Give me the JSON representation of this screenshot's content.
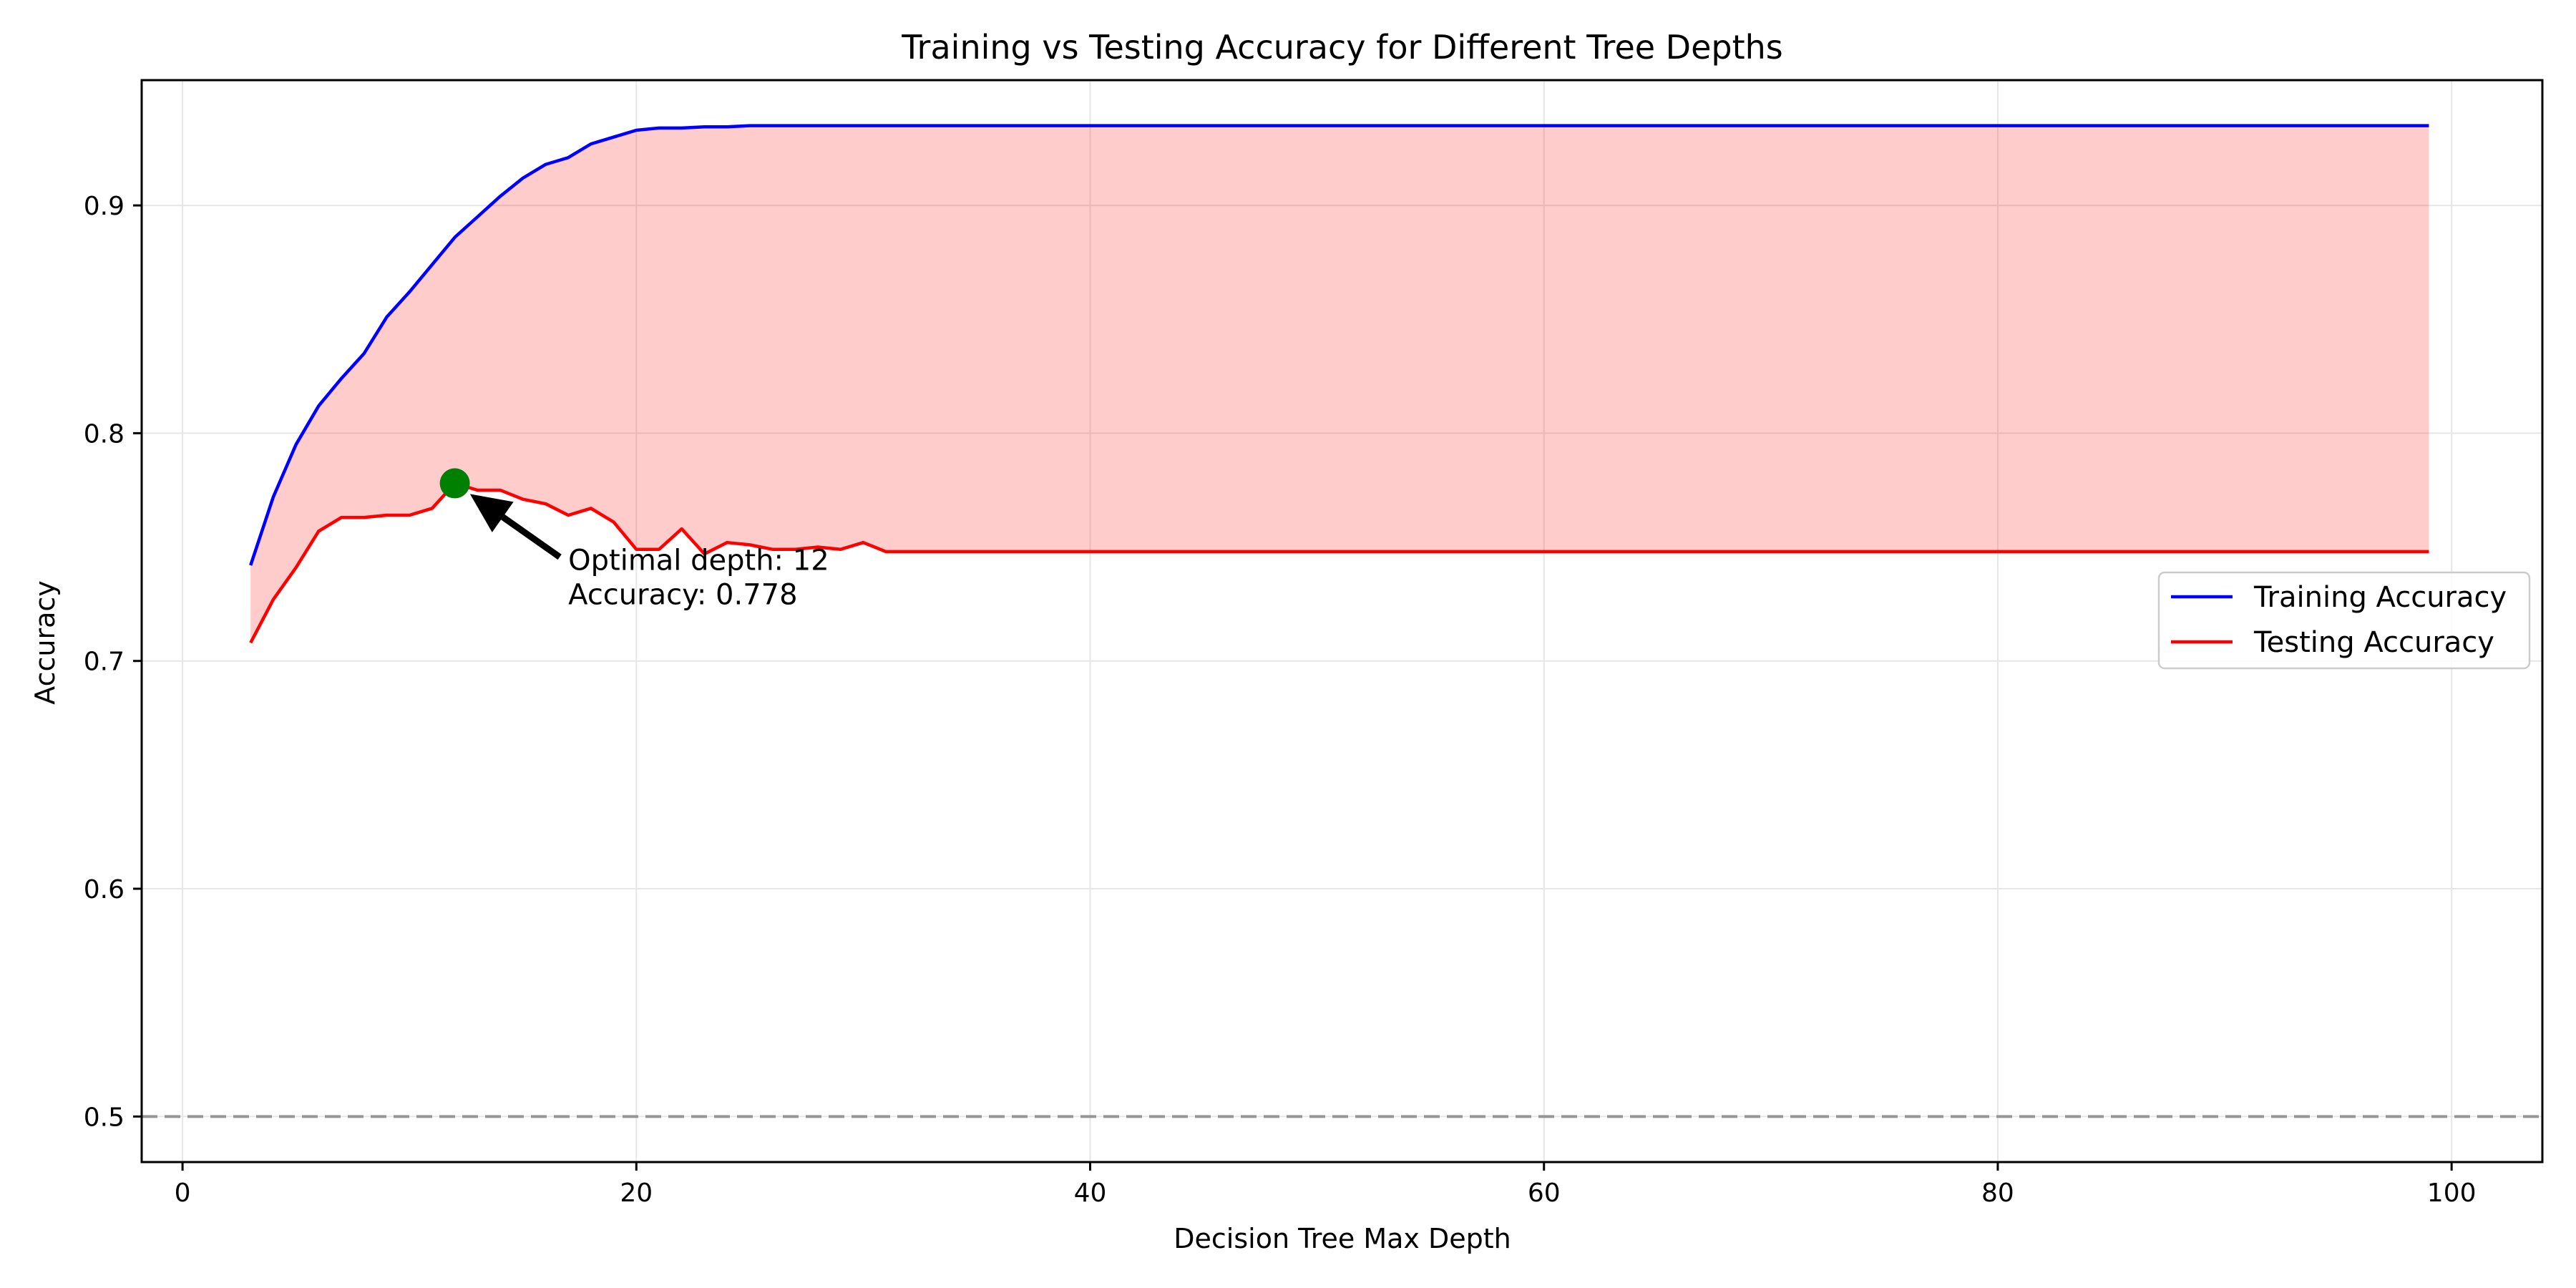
{
  "chart_data": {
    "type": "line",
    "title": "Training vs Testing Accuracy for Different Tree Depths",
    "xlabel": "Decision Tree Max Depth",
    "ylabel": "Accuracy",
    "xlim": [
      -1.8,
      104.0
    ],
    "ylim": [
      0.48,
      0.955
    ],
    "xticks": [
      0,
      20,
      40,
      60,
      80,
      100
    ],
    "yticks": [
      0.5,
      0.6,
      0.7,
      0.8,
      0.9
    ],
    "xtick_labels": [
      "0",
      "20",
      "40",
      "60",
      "80",
      "100"
    ],
    "ytick_labels": [
      "0.5",
      "0.6",
      "0.7",
      "0.8",
      "0.9"
    ],
    "grid": true,
    "legend_position": "center-right",
    "x": [
      3,
      4,
      5,
      6,
      7,
      8,
      9,
      10,
      11,
      12,
      13,
      14,
      15,
      16,
      17,
      18,
      19,
      20,
      21,
      22,
      23,
      24,
      25,
      26,
      27,
      28,
      29,
      30,
      31,
      32,
      33,
      34,
      35,
      36,
      37,
      38,
      39,
      40,
      41,
      42,
      43,
      44,
      45,
      46,
      47,
      48,
      49,
      50,
      51,
      52,
      53,
      54,
      55,
      56,
      57,
      58,
      59,
      60,
      61,
      62,
      63,
      64,
      65,
      66,
      67,
      68,
      69,
      70,
      71,
      72,
      73,
      74,
      75,
      76,
      77,
      78,
      79,
      80,
      81,
      82,
      83,
      84,
      85,
      86,
      87,
      88,
      89,
      90,
      91,
      92,
      93,
      94,
      95,
      96,
      97,
      98,
      99
    ],
    "series": [
      {
        "name": "Training Accuracy",
        "color": "#0000ff",
        "values": [
          0.742,
          0.772,
          0.795,
          0.812,
          0.824,
          0.835,
          0.851,
          0.862,
          0.874,
          0.886,
          0.895,
          0.904,
          0.912,
          0.918,
          0.921,
          0.927,
          0.93,
          0.933,
          0.934,
          0.934,
          0.9345,
          0.9345,
          0.935,
          0.935,
          0.935,
          0.935,
          0.935,
          0.935,
          0.935,
          0.935,
          0.935,
          0.935,
          0.935,
          0.935,
          0.935,
          0.935,
          0.935,
          0.935,
          0.935,
          0.935,
          0.935,
          0.935,
          0.935,
          0.935,
          0.935,
          0.935,
          0.935,
          0.935,
          0.935,
          0.935,
          0.935,
          0.935,
          0.935,
          0.935,
          0.935,
          0.935,
          0.935,
          0.935,
          0.935,
          0.935,
          0.935,
          0.935,
          0.935,
          0.935,
          0.935,
          0.935,
          0.935,
          0.935,
          0.935,
          0.935,
          0.935,
          0.935,
          0.935,
          0.935,
          0.935,
          0.935,
          0.935,
          0.935,
          0.935,
          0.935,
          0.935,
          0.935,
          0.935,
          0.935,
          0.935,
          0.935,
          0.935,
          0.935,
          0.935,
          0.935,
          0.935,
          0.935,
          0.935,
          0.935,
          0.935,
          0.935,
          0.935
        ]
      },
      {
        "name": "Testing Accuracy",
        "color": "#ff0000",
        "values": [
          0.708,
          0.727,
          0.741,
          0.757,
          0.763,
          0.763,
          0.764,
          0.764,
          0.767,
          0.778,
          0.775,
          0.775,
          0.771,
          0.769,
          0.764,
          0.767,
          0.761,
          0.749,
          0.749,
          0.758,
          0.747,
          0.752,
          0.751,
          0.749,
          0.749,
          0.75,
          0.749,
          0.752,
          0.748,
          0.748,
          0.748,
          0.748,
          0.748,
          0.748,
          0.748,
          0.748,
          0.748,
          0.748,
          0.748,
          0.748,
          0.748,
          0.748,
          0.748,
          0.748,
          0.748,
          0.748,
          0.748,
          0.748,
          0.748,
          0.748,
          0.748,
          0.748,
          0.748,
          0.748,
          0.748,
          0.748,
          0.748,
          0.748,
          0.748,
          0.748,
          0.748,
          0.748,
          0.748,
          0.748,
          0.748,
          0.748,
          0.748,
          0.748,
          0.748,
          0.748,
          0.748,
          0.748,
          0.748,
          0.748,
          0.748,
          0.748,
          0.748,
          0.748,
          0.748,
          0.748,
          0.748,
          0.748,
          0.748,
          0.748,
          0.748,
          0.748,
          0.748,
          0.748,
          0.748,
          0.748,
          0.748,
          0.748,
          0.748,
          0.748,
          0.748,
          0.748,
          0.748
        ]
      }
    ],
    "fill_between": {
      "color": "#ff0000",
      "opacity": 0.2
    },
    "reference_line": {
      "y": 0.5,
      "color": "#808080",
      "style": "dashed"
    },
    "optimal_point": {
      "x": 12,
      "y": 0.778,
      "color": "#008000"
    },
    "annotation": {
      "line1": "Optimal depth: 12",
      "line2": "Accuracy: 0.778",
      "text_anchor": {
        "x": 17,
        "y": 0.745
      }
    }
  }
}
